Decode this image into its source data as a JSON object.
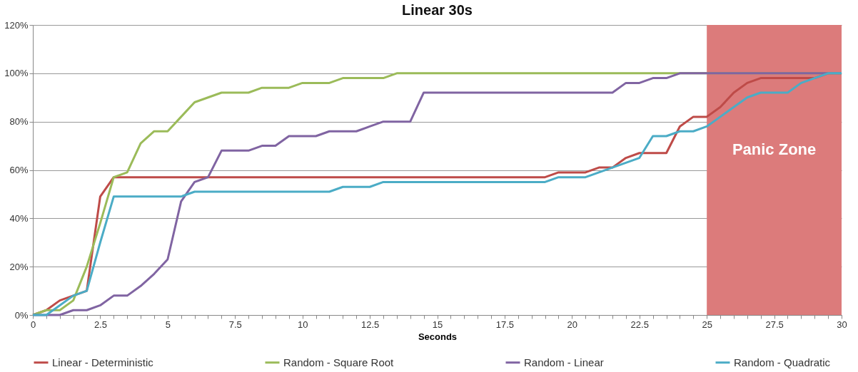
{
  "chart_data": {
    "type": "line",
    "title": "Linear 30s",
    "xlabel": "Seconds",
    "x": [
      0,
      0.5,
      1,
      1.5,
      2,
      2.5,
      3,
      3.5,
      4,
      4.5,
      5,
      5.5,
      6,
      6.5,
      7,
      7.5,
      8,
      8.5,
      9,
      9.5,
      10,
      10.5,
      11,
      11.5,
      12,
      12.5,
      13,
      13.5,
      14,
      14.5,
      15,
      15.5,
      16,
      16.5,
      17,
      17.5,
      18,
      18.5,
      19,
      19.5,
      20,
      20.5,
      21,
      21.5,
      22,
      22.5,
      23,
      23.5,
      24,
      24.5,
      25,
      25.5,
      26,
      26.5,
      27,
      27.5,
      28,
      28.5,
      29,
      29.5,
      30
    ],
    "series": [
      {
        "name": "Linear - Deterministic",
        "color": "#be4b48",
        "values": [
          0,
          2,
          6,
          8,
          10,
          49,
          57,
          57,
          57,
          57,
          57,
          57,
          57,
          57,
          57,
          57,
          57,
          57,
          57,
          57,
          57,
          57,
          57,
          57,
          57,
          57,
          57,
          57,
          57,
          57,
          57,
          57,
          57,
          57,
          57,
          57,
          57,
          57,
          57,
          59,
          59,
          59,
          61,
          61,
          65,
          67,
          67,
          67,
          78,
          82,
          82,
          86,
          92,
          96,
          98,
          98,
          98,
          98,
          98,
          100,
          100
        ]
      },
      {
        "name": "Random - Square Root",
        "color": "#9bbb59",
        "values": [
          0,
          2,
          2,
          6,
          20,
          38,
          57,
          59,
          71,
          76,
          76,
          82,
          88,
          90,
          92,
          92,
          92,
          94,
          94,
          94,
          96,
          96,
          96,
          98,
          98,
          98,
          98,
          100,
          100,
          100,
          100,
          100,
          100,
          100,
          100,
          100,
          100,
          100,
          100,
          100,
          100,
          100,
          100,
          100,
          100,
          100,
          100,
          100,
          100,
          100,
          100,
          100,
          100,
          100,
          100,
          100,
          100,
          100,
          100,
          100,
          100
        ]
      },
      {
        "name": "Random - Linear",
        "color": "#8064a2",
        "values": [
          0,
          0,
          0,
          2,
          2,
          4,
          8,
          8,
          12,
          17,
          23,
          47,
          55,
          57,
          68,
          68,
          68,
          70,
          70,
          74,
          74,
          74,
          76,
          76,
          76,
          78,
          80,
          80,
          80,
          92,
          92,
          92,
          92,
          92,
          92,
          92,
          92,
          92,
          92,
          92,
          92,
          92,
          92,
          92,
          96,
          96,
          98,
          98,
          100,
          100,
          100,
          100,
          100,
          100,
          100,
          100,
          100,
          100,
          100,
          100,
          100
        ]
      },
      {
        "name": "Random - Quadratic",
        "color": "#4bacc6",
        "values": [
          0,
          0,
          4,
          8,
          10,
          30,
          49,
          49,
          49,
          49,
          49,
          49,
          51,
          51,
          51,
          51,
          51,
          51,
          51,
          51,
          51,
          51,
          51,
          53,
          53,
          53,
          55,
          55,
          55,
          55,
          55,
          55,
          55,
          55,
          55,
          55,
          55,
          55,
          55,
          57,
          57,
          57,
          59,
          61,
          63,
          65,
          74,
          74,
          76,
          76,
          78,
          82,
          86,
          90,
          92,
          92,
          92,
          96,
          98,
          100,
          100
        ]
      }
    ],
    "xlim": [
      0,
      30
    ],
    "xticks": [
      0,
      {
        "value": 0.5,
        "label": null
      },
      {
        "value": 1,
        "label": null
      },
      {
        "value": 1.5,
        "label": null
      },
      {
        "value": 2,
        "label": null
      },
      2.5,
      {
        "value": 3,
        "label": null
      },
      {
        "value": 3.5,
        "label": null
      },
      {
        "value": 4,
        "label": null
      },
      {
        "value": 4.5,
        "label": null
      },
      5,
      {
        "value": 5.5,
        "label": null
      },
      {
        "value": 6,
        "label": null
      },
      {
        "value": 6.5,
        "label": null
      },
      {
        "value": 7,
        "label": null
      },
      7.5,
      {
        "value": 8,
        "label": null
      },
      {
        "value": 8.5,
        "label": null
      },
      {
        "value": 9,
        "label": null
      },
      {
        "value": 9.5,
        "label": null
      },
      10,
      {
        "value": 10.5,
        "label": null
      },
      {
        "value": 11,
        "label": null
      },
      {
        "value": 11.5,
        "label": null
      },
      {
        "value": 12,
        "label": null
      },
      12.5,
      {
        "value": 13,
        "label": null
      },
      {
        "value": 13.5,
        "label": null
      },
      {
        "value": 14,
        "label": null
      },
      {
        "value": 14.5,
        "label": null
      },
      15,
      {
        "value": 15.5,
        "label": null
      },
      {
        "value": 16,
        "label": null
      },
      {
        "value": 16.5,
        "label": null
      },
      {
        "value": 17,
        "label": null
      },
      17.5,
      {
        "value": 18,
        "label": null
      },
      {
        "value": 18.5,
        "label": null
      },
      {
        "value": 19,
        "label": null
      },
      {
        "value": 19.5,
        "label": null
      },
      20,
      {
        "value": 20.5,
        "label": null
      },
      {
        "value": 21,
        "label": null
      },
      {
        "value": 21.5,
        "label": null
      },
      {
        "value": 22,
        "label": null
      },
      22.5,
      {
        "value": 23,
        "label": null
      },
      {
        "value": 23.5,
        "label": null
      },
      {
        "value": 24,
        "label": null
      },
      {
        "value": 24.5,
        "label": null
      },
      25,
      {
        "value": 25.5,
        "label": null
      },
      {
        "value": 26,
        "label": null
      },
      {
        "value": 26.5,
        "label": null
      },
      {
        "value": 27,
        "label": null
      },
      27.5,
      {
        "value": 28,
        "label": null
      },
      {
        "value": 28.5,
        "label": null
      },
      {
        "value": 29,
        "label": null
      },
      {
        "value": 29.5,
        "label": null
      },
      30
    ],
    "ylim": [
      0,
      120
    ],
    "yticks": [
      {
        "value": 0,
        "label": "0%"
      },
      {
        "value": 20,
        "label": "20%"
      },
      {
        "value": 40,
        "label": "40%"
      },
      {
        "value": 60,
        "label": "60%"
      },
      {
        "value": 80,
        "label": "80%"
      },
      {
        "value": 100,
        "label": "100%"
      },
      {
        "value": 120,
        "label": "120%"
      }
    ],
    "bands": [
      {
        "axis": "x",
        "from": 25,
        "to": 30,
        "label": "Panic Zone",
        "color": "#dc7b7b"
      }
    ],
    "grid": "y",
    "legend": "bottom",
    "marker": "none",
    "line_style": "solid"
  }
}
